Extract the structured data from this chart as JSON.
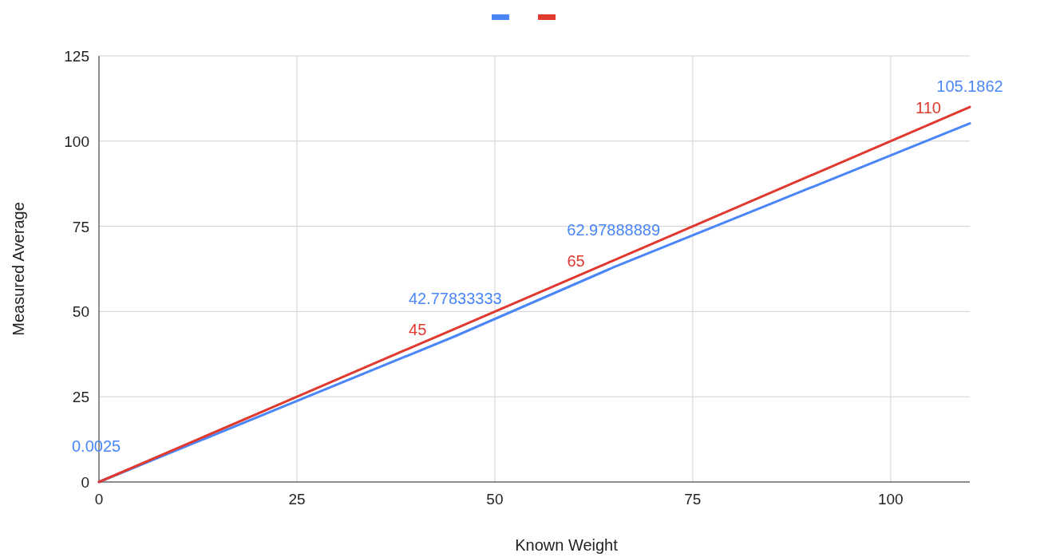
{
  "chart_data": {
    "type": "line",
    "xlabel": "Known Weight",
    "ylabel": "Measured Average",
    "x": [
      0,
      45,
      65,
      110
    ],
    "series": [
      {
        "color": "#4a86f7",
        "values": [
          0.0025,
          42.77833333,
          62.97888889,
          105.1862
        ],
        "value_labels": [
          "0.0025",
          "42.77833333",
          "62.97888889",
          "105.1862"
        ]
      },
      {
        "color": "#e0392f",
        "values": [
          0,
          45,
          65,
          110
        ],
        "value_labels": [
          null,
          "45",
          "65",
          "110"
        ]
      }
    ],
    "xlim": [
      0,
      110
    ],
    "xticks": [
      0,
      25,
      50,
      75,
      100
    ],
    "ylim": [
      0,
      125
    ],
    "yticks": [
      0,
      25,
      50,
      75,
      100,
      125
    ],
    "grid": true,
    "marker": "none",
    "line_style": "solid"
  }
}
